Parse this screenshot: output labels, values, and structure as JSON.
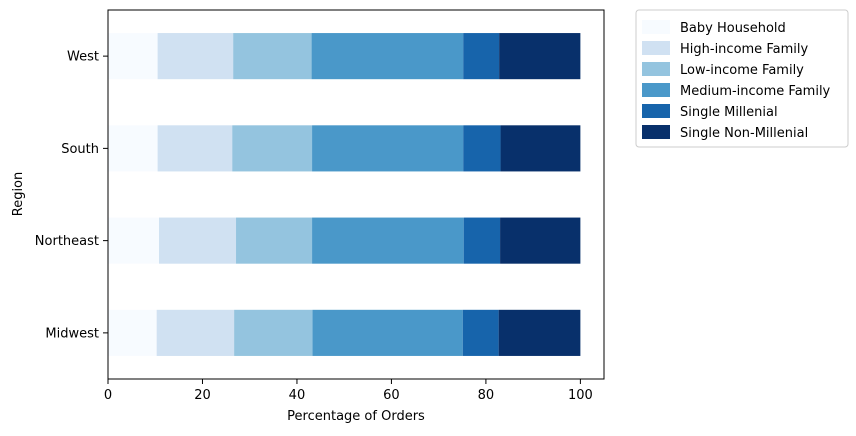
{
  "chart_data": {
    "type": "bar",
    "orientation": "horizontal",
    "stacked": true,
    "xlabel": "Percentage of Orders",
    "ylabel": "Region",
    "xlim": [
      0,
      105
    ],
    "xticks": [
      "0",
      "20",
      "40",
      "60",
      "80",
      "100"
    ],
    "categories": [
      "West",
      "South",
      "Northeast",
      "Midwest"
    ],
    "series": [
      {
        "name": "Baby Household",
        "color": "#f7fbff",
        "values": [
          10.5,
          10.5,
          10.8,
          10.3
        ]
      },
      {
        "name": "High-income Family",
        "color": "#d0e1f2",
        "values": [
          16.0,
          15.8,
          16.3,
          16.4
        ]
      },
      {
        "name": "Low-income Family",
        "color": "#94c4df",
        "values": [
          16.6,
          16.9,
          16.1,
          16.6
        ]
      },
      {
        "name": "Medium-income Family",
        "color": "#4a98c9",
        "values": [
          32.1,
          32.0,
          32.1,
          31.8
        ]
      },
      {
        "name": "Single Millenial",
        "color": "#1764ab",
        "values": [
          7.6,
          7.9,
          7.7,
          7.6
        ]
      },
      {
        "name": "Single Non-Millenial",
        "color": "#08306b",
        "values": [
          17.2,
          16.9,
          17.0,
          17.3
        ]
      }
    ],
    "legend_position": "outside-top-right",
    "grid": false
  }
}
